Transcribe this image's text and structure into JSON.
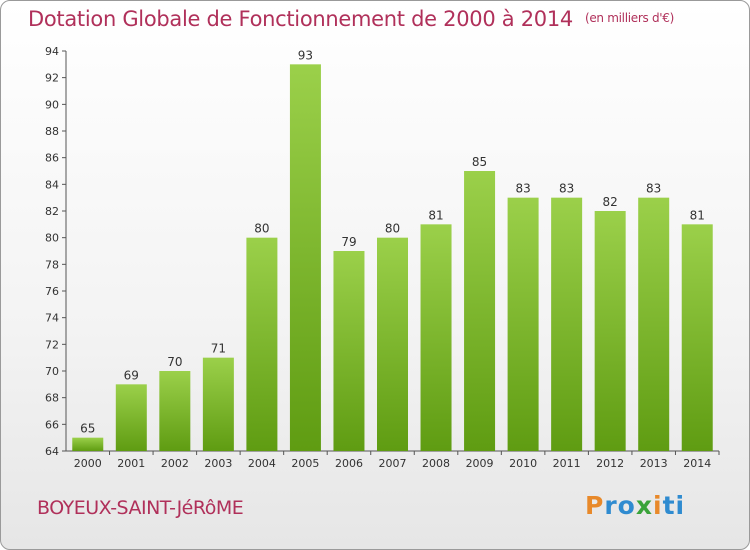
{
  "title": "Dotation Globale de Fonctionnement de 2000 à 2014",
  "unit_note": "(en milliers d'€)",
  "commune": "BOYEUX-SAINT-JéRôME",
  "brand": {
    "letters": [
      "P",
      "r",
      "o",
      "x",
      "i",
      "t",
      "i"
    ],
    "colors": [
      "#e8892a",
      "#2f8bd0",
      "#2f8bd0",
      "#3aa33a",
      "#e8892a",
      "#2f8bd0",
      "#2f8bd0"
    ]
  },
  "colors": {
    "title": "#b0305a",
    "bar_top": "#9bd04a",
    "bar_bottom": "#5f9c12"
  },
  "chart_data": {
    "type": "bar",
    "categories": [
      "2000",
      "2001",
      "2002",
      "2003",
      "2004",
      "2005",
      "2006",
      "2007",
      "2008",
      "2009",
      "2010",
      "2011",
      "2012",
      "2013",
      "2014"
    ],
    "values": [
      65,
      69,
      70,
      71,
      80,
      93,
      79,
      80,
      81,
      85,
      83,
      83,
      82,
      83,
      81
    ],
    "ylim": [
      64,
      94
    ],
    "yticks": [
      "64",
      "66",
      "68",
      "70",
      "72",
      "74",
      "76",
      "78",
      "80",
      "82",
      "84",
      "86",
      "88",
      "90",
      "92",
      "94"
    ],
    "grid": false,
    "legend": "none",
    "xlabel": "",
    "ylabel": ""
  }
}
